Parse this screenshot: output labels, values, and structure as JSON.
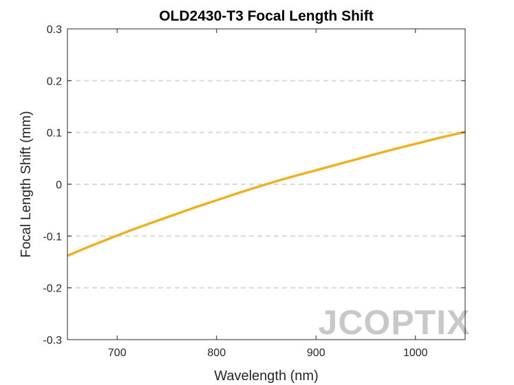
{
  "chart_data": {
    "type": "line",
    "title": "OLD2430-T3 Focal Length Shift",
    "xlabel": "Wavelength (nm)",
    "ylabel": "Focal Length Shift (mm)",
    "xlim": [
      650,
      1050
    ],
    "ylim": [
      -0.3,
      0.3
    ],
    "xticks": [
      700,
      800,
      900,
      1000
    ],
    "xtick_labels": [
      "700",
      "800",
      "900",
      "1000"
    ],
    "yticks": [
      -0.3,
      -0.2,
      -0.1,
      0,
      0.1,
      0.2,
      0.3
    ],
    "ytick_labels": [
      "-0.3",
      "-0.2",
      "-0.1",
      "0",
      "0.1",
      "0.2",
      "0.3"
    ],
    "grid": "horizontal dashed",
    "series": [
      {
        "color": "#EDB120",
        "x": [
          650,
          675,
          700,
          725,
          750,
          775,
          800,
          825,
          850,
          875,
          900,
          925,
          950,
          975,
          1000,
          1025,
          1050
        ],
        "y": [
          -0.138,
          -0.118,
          -0.099,
          -0.081,
          -0.064,
          -0.047,
          -0.031,
          -0.015,
          0.0,
          0.014,
          0.027,
          0.04,
          0.053,
          0.066,
          0.078,
          0.09,
          0.101
        ]
      }
    ]
  },
  "watermark": {
    "text": "JCOPTIX"
  }
}
